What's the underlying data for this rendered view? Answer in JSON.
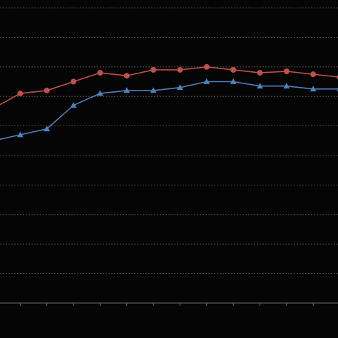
{
  "chart_data": {
    "type": "line",
    "title": "",
    "xlabel": "",
    "ylabel": "",
    "x": [
      0,
      1,
      2,
      3,
      4,
      5,
      6,
      7,
      8,
      9,
      10,
      11,
      12,
      13
    ],
    "xlim": [
      0,
      13
    ],
    "ylim": [
      0,
      10
    ],
    "grid": true,
    "legend": "none",
    "series": [
      {
        "marker": "circle",
        "color": "#c0504d",
        "values": [
          6.6,
          7.1,
          7.2,
          7.5,
          7.8,
          7.7,
          7.9,
          7.9,
          8.0,
          7.9,
          7.8,
          7.85,
          7.75,
          7.65
        ]
      },
      {
        "marker": "triangle",
        "color": "#4f81bd",
        "values": [
          5.5,
          5.7,
          5.9,
          6.7,
          7.1,
          7.2,
          7.2,
          7.3,
          7.5,
          7.5,
          7.35,
          7.35,
          7.25,
          7.25
        ]
      }
    ]
  }
}
